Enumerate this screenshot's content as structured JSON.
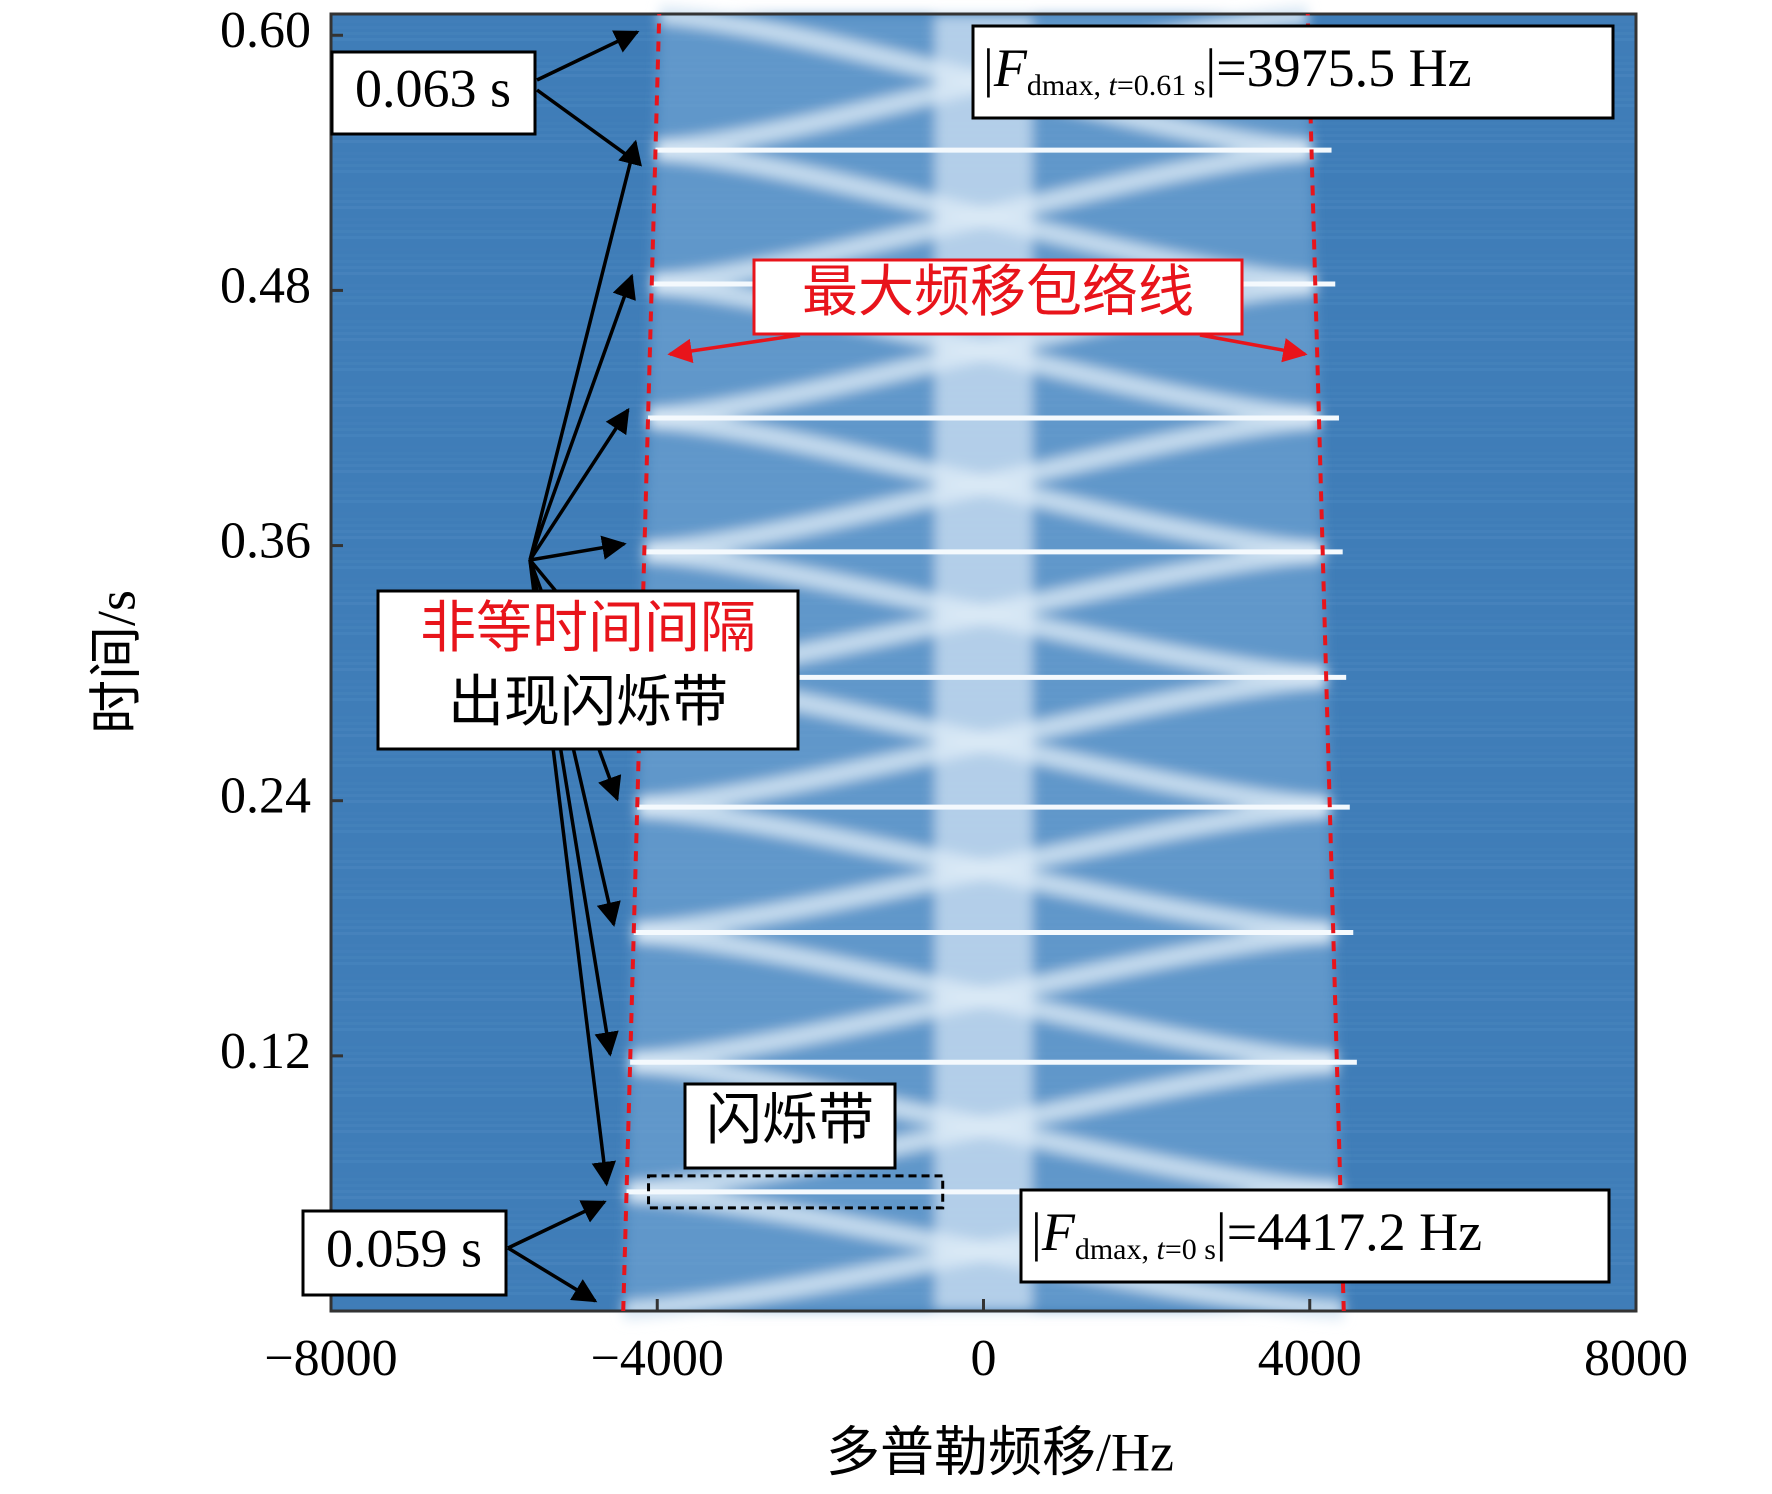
{
  "chart_data": {
    "type": "spectrogram",
    "xlabel": "多普勒频移/Hz",
    "ylabel": "时间/s",
    "xlim": [
      -8000,
      8000
    ],
    "xticks": [
      {
        "value": -8000,
        "label": "−8000"
      },
      {
        "value": -4000,
        "label": "−4000"
      },
      0,
      4000,
      8000
    ],
    "ylim": [
      0,
      0.61
    ],
    "yticks": [
      0.12,
      0.24,
      0.36,
      0.48,
      {
        "value": 0.6,
        "label": "0.60"
      }
    ],
    "envelope": {
      "label": "最大频移包络线",
      "color": "#e8141b",
      "t": [
        0,
        0.61
      ],
      "fmax": [
        4417.2,
        3975.5
      ]
    },
    "flicker_times": [
      0.056,
      0.117,
      0.178,
      0.237,
      0.298,
      0.357,
      0.42,
      0.483,
      0.546
    ],
    "flicker_label": "闪烁带",
    "interval_note": [
      "非等时间间隔",
      "出现闪烁带"
    ],
    "interval_top": "0.063 s",
    "interval_bottom": "0.059 s",
    "fdmax_top": [
      "|",
      "F",
      "dmax, ",
      "t",
      "=0.61 s",
      "|=3975.5 Hz"
    ],
    "fdmax_bottom": [
      "|",
      "F",
      "dmax, ",
      "t",
      "=0 s",
      "|=4417.2 Hz"
    ]
  }
}
